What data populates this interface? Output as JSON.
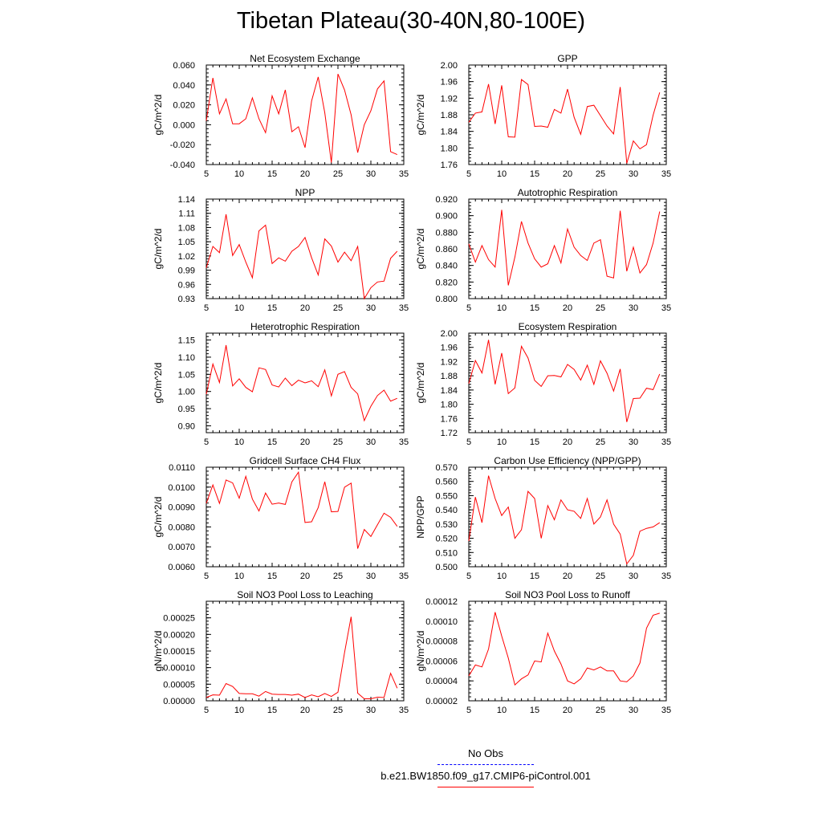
{
  "page": {
    "title": "Tibetan Plateau(30-40N,80-100E)"
  },
  "legend": [
    {
      "label": "No Obs",
      "color": "#0000ff",
      "dash": true
    },
    {
      "label": "b.e21.BW1850.f09_g17.CMIP6-piControl.001",
      "color": "#ff0000",
      "dash": false
    }
  ],
  "chart_data": [
    {
      "type": "line",
      "title": "Net Ecosystem Exchange",
      "ylabel": "gC/m^2/d",
      "xlim": [
        5,
        35
      ],
      "ylim": [
        -0.04,
        0.06
      ],
      "xticks": [
        "5",
        "10",
        "15",
        "20",
        "25",
        "30",
        "35"
      ],
      "yticks": [
        "-0.040",
        "-0.020",
        "0.000",
        "0.020",
        "0.040",
        "0.060"
      ],
      "series": [
        {
          "color": "#ff0000",
          "x": [
            5,
            6,
            7,
            8,
            9,
            10,
            11,
            12,
            13,
            14,
            15,
            16,
            17,
            18,
            19,
            20,
            21,
            22,
            23,
            24,
            25,
            26,
            27,
            28,
            29,
            30,
            31,
            32,
            33,
            34
          ],
          "y": [
            0.004,
            0.047,
            0.011,
            0.026,
            0.001,
            0.001,
            0.006,
            0.027,
            0.006,
            -0.008,
            0.029,
            0.011,
            0.035,
            -0.007,
            -0.002,
            -0.023,
            0.024,
            0.048,
            0.012,
            -0.038,
            0.051,
            0.035,
            0.01,
            -0.028,
            0.0,
            0.014,
            0.036,
            0.044,
            -0.027,
            -0.03
          ]
        }
      ]
    },
    {
      "type": "line",
      "title": "GPP",
      "ylabel": "gC/m^2/d",
      "xlim": [
        5,
        35
      ],
      "ylim": [
        1.76,
        2.0
      ],
      "xticks": [
        "5",
        "10",
        "15",
        "20",
        "25",
        "30",
        "35"
      ],
      "yticks": [
        "1.76",
        "1.80",
        "1.84",
        "1.88",
        "1.92",
        "1.96",
        "2.00"
      ],
      "series": [
        {
          "color": "#ff0000",
          "x": [
            5,
            6,
            7,
            8,
            9,
            10,
            11,
            12,
            13,
            14,
            15,
            16,
            17,
            18,
            19,
            20,
            21,
            22,
            23,
            24,
            25,
            26,
            27,
            28,
            29,
            30,
            31,
            32,
            33,
            34
          ],
          "y": [
            1.862,
            1.884,
            1.887,
            1.954,
            1.858,
            1.951,
            1.827,
            1.826,
            1.965,
            1.953,
            1.852,
            1.853,
            1.85,
            1.893,
            1.884,
            1.942,
            1.874,
            1.833,
            1.9,
            1.903,
            1.878,
            1.853,
            1.834,
            1.947,
            1.763,
            1.817,
            1.798,
            1.808,
            1.879,
            1.934
          ]
        }
      ]
    },
    {
      "type": "line",
      "title": "NPP",
      "ylabel": "gC/m^2/d",
      "xlim": [
        5,
        35
      ],
      "ylim": [
        0.93,
        1.14
      ],
      "xticks": [
        "5",
        "10",
        "15",
        "20",
        "25",
        "30",
        "35"
      ],
      "yticks": [
        "0.93",
        "0.96",
        "0.99",
        "1.02",
        "1.05",
        "1.08",
        "1.11",
        "1.14"
      ],
      "series": [
        {
          "color": "#ff0000",
          "x": [
            5,
            6,
            7,
            8,
            9,
            10,
            11,
            12,
            13,
            14,
            15,
            16,
            17,
            18,
            19,
            20,
            21,
            22,
            23,
            24,
            25,
            26,
            27,
            28,
            29,
            30,
            31,
            32,
            33,
            34
          ],
          "y": [
            0.995,
            1.04,
            1.027,
            1.108,
            1.021,
            1.044,
            1.007,
            0.974,
            1.073,
            1.085,
            1.004,
            1.016,
            1.009,
            1.03,
            1.04,
            1.059,
            1.016,
            0.98,
            1.056,
            1.041,
            1.007,
            1.028,
            1.01,
            1.04,
            0.93,
            0.953,
            0.965,
            0.967,
            1.015,
            1.03
          ]
        }
      ]
    },
    {
      "type": "line",
      "title": "Autotrophic Respiration",
      "ylabel": "gC/m^2/d",
      "xlim": [
        5,
        35
      ],
      "ylim": [
        0.8,
        0.92
      ],
      "xticks": [
        "5",
        "10",
        "15",
        "20",
        "25",
        "30",
        "35"
      ],
      "yticks": [
        "0.800",
        "0.820",
        "0.840",
        "0.860",
        "0.880",
        "0.900",
        "0.920"
      ],
      "series": [
        {
          "color": "#ff0000",
          "x": [
            5,
            6,
            7,
            8,
            9,
            10,
            11,
            12,
            13,
            14,
            15,
            16,
            17,
            18,
            19,
            20,
            21,
            22,
            23,
            24,
            25,
            26,
            27,
            28,
            29,
            30,
            31,
            32,
            33,
            34
          ],
          "y": [
            0.866,
            0.844,
            0.864,
            0.847,
            0.838,
            0.907,
            0.816,
            0.85,
            0.893,
            0.867,
            0.848,
            0.838,
            0.842,
            0.864,
            0.843,
            0.884,
            0.862,
            0.852,
            0.846,
            0.867,
            0.871,
            0.827,
            0.825,
            0.906,
            0.833,
            0.862,
            0.831,
            0.841,
            0.867,
            0.905
          ]
        }
      ]
    },
    {
      "type": "line",
      "title": "Heterotrophic Respiration",
      "ylabel": "gC/m^2/d",
      "xlim": [
        5,
        35
      ],
      "ylim": [
        0.88,
        1.17
      ],
      "xticks": [
        "5",
        "10",
        "15",
        "20",
        "25",
        "30",
        "35"
      ],
      "yticks": [
        "0.90",
        "0.95",
        "1.00",
        "1.05",
        "1.10",
        "1.15"
      ],
      "series": [
        {
          "color": "#ff0000",
          "x": [
            5,
            6,
            7,
            8,
            9,
            10,
            11,
            12,
            13,
            14,
            15,
            16,
            17,
            18,
            19,
            20,
            21,
            22,
            23,
            24,
            25,
            26,
            27,
            28,
            29,
            30,
            31,
            32,
            33,
            34
          ],
          "y": [
            0.992,
            1.08,
            1.026,
            1.135,
            1.016,
            1.037,
            1.012,
            0.999,
            1.069,
            1.064,
            1.019,
            1.013,
            1.039,
            1.017,
            1.033,
            1.025,
            1.031,
            1.014,
            1.063,
            0.987,
            1.05,
            1.058,
            1.012,
            0.993,
            0.915,
            0.957,
            0.988,
            1.004,
            0.972,
            0.98
          ]
        }
      ]
    },
    {
      "type": "line",
      "title": "Ecosystem Respiration",
      "ylabel": "gC/m^2/d",
      "xlim": [
        5,
        35
      ],
      "ylim": [
        1.72,
        2.0
      ],
      "xticks": [
        "5",
        "10",
        "15",
        "20",
        "25",
        "30",
        "35"
      ],
      "yticks": [
        "1.72",
        "1.76",
        "1.80",
        "1.84",
        "1.88",
        "1.92",
        "1.96",
        "2.00"
      ],
      "series": [
        {
          "color": "#ff0000",
          "x": [
            5,
            6,
            7,
            8,
            9,
            10,
            11,
            12,
            13,
            14,
            15,
            16,
            17,
            18,
            19,
            20,
            21,
            22,
            23,
            24,
            25,
            26,
            27,
            28,
            29,
            30,
            31,
            32,
            33,
            34
          ],
          "y": [
            1.858,
            1.923,
            1.888,
            1.981,
            1.856,
            1.944,
            1.83,
            1.846,
            1.963,
            1.93,
            1.867,
            1.85,
            1.88,
            1.881,
            1.877,
            1.912,
            1.898,
            1.868,
            1.91,
            1.856,
            1.922,
            1.887,
            1.837,
            1.899,
            1.75,
            1.816,
            1.817,
            1.845,
            1.841,
            1.885
          ]
        }
      ]
    },
    {
      "type": "line",
      "title": "Gridcell Surface CH4 Flux",
      "ylabel": "gC/m^2/d",
      "xlim": [
        5,
        35
      ],
      "ylim": [
        0.006,
        0.011
      ],
      "xticks": [
        "5",
        "10",
        "15",
        "20",
        "25",
        "30",
        "35"
      ],
      "yticks": [
        "0.0060",
        "0.0070",
        "0.0080",
        "0.0090",
        "0.0100",
        "0.0110"
      ],
      "series": [
        {
          "color": "#ff0000",
          "x": [
            5,
            6,
            7,
            8,
            9,
            10,
            11,
            12,
            13,
            14,
            15,
            16,
            17,
            18,
            19,
            20,
            21,
            22,
            23,
            24,
            25,
            26,
            27,
            28,
            29,
            30,
            31,
            32,
            33,
            34
          ],
          "y": [
            0.00918,
            0.01011,
            0.00918,
            0.01036,
            0.01021,
            0.00944,
            0.01054,
            0.0094,
            0.0088,
            0.0097,
            0.00914,
            0.0092,
            0.00913,
            0.01026,
            0.01075,
            0.00822,
            0.00826,
            0.00897,
            0.01027,
            0.00876,
            0.00878,
            0.00999,
            0.0102,
            0.00691,
            0.00787,
            0.00752,
            0.00811,
            0.00869,
            0.00848,
            0.00803
          ]
        }
      ]
    },
    {
      "type": "line",
      "title": "Carbon Use Efficiency (NPP/GPP)",
      "ylabel": "NPP/GPP",
      "xlim": [
        5,
        35
      ],
      "ylim": [
        0.5,
        0.57
      ],
      "xticks": [
        "5",
        "10",
        "15",
        "20",
        "25",
        "30",
        "35"
      ],
      "yticks": [
        "0.500",
        "0.510",
        "0.520",
        "0.530",
        "0.540",
        "0.550",
        "0.560",
        "0.570"
      ],
      "series": [
        {
          "color": "#ff0000",
          "x": [
            5,
            6,
            7,
            8,
            9,
            10,
            11,
            12,
            13,
            14,
            15,
            16,
            17,
            18,
            19,
            20,
            21,
            22,
            23,
            24,
            25,
            26,
            27,
            28,
            29,
            30,
            31,
            32,
            33,
            34
          ],
          "y": [
            0.518,
            0.549,
            0.531,
            0.564,
            0.548,
            0.536,
            0.542,
            0.52,
            0.526,
            0.553,
            0.548,
            0.52,
            0.543,
            0.533,
            0.547,
            0.54,
            0.539,
            0.534,
            0.548,
            0.53,
            0.535,
            0.547,
            0.53,
            0.523,
            0.502,
            0.508,
            0.525,
            0.527,
            0.528,
            0.531
          ]
        }
      ]
    },
    {
      "type": "line",
      "title": "Soil NO3 Pool Loss to Leaching",
      "ylabel": "gN/m^2/d",
      "xlim": [
        5,
        35
      ],
      "ylim": [
        0.0,
        0.0003
      ],
      "xticks": [
        "5",
        "10",
        "15",
        "20",
        "25",
        "30",
        "35"
      ],
      "yticks": [
        "0.00000",
        "0.00005",
        "0.00010",
        "0.00015",
        "0.00020",
        "0.00025"
      ],
      "series": [
        {
          "color": "#ff0000",
          "x": [
            5,
            6,
            7,
            8,
            9,
            10,
            11,
            12,
            13,
            14,
            15,
            16,
            17,
            18,
            19,
            20,
            21,
            22,
            23,
            24,
            25,
            26,
            27,
            28,
            29,
            30,
            31,
            32,
            33,
            34
          ],
          "y": [
            1e-05,
            1.8e-05,
            1.7e-05,
            5.2e-05,
            4.3e-05,
            2.2e-05,
            2.1e-05,
            2.1e-05,
            1.4e-05,
            2.8e-05,
            2e-05,
            1.9e-05,
            1.9e-05,
            1.7e-05,
            2e-05,
            1e-05,
            1.8e-05,
            1.2e-05,
            2.2e-05,
            1.3e-05,
            2.6e-05,
            0.000145,
            0.000253,
            2.3e-05,
            6e-06,
            6e-06,
            1.1e-05,
            1e-05,
            8.3e-05,
            3.8e-05
          ]
        }
      ]
    },
    {
      "type": "line",
      "title": "Soil NO3 Pool Loss to Runoff",
      "ylabel": "gN/m^2/d",
      "xlim": [
        5,
        35
      ],
      "ylim": [
        2e-05,
        0.00012
      ],
      "xticks": [
        "5",
        "10",
        "15",
        "20",
        "25",
        "30",
        "35"
      ],
      "yticks": [
        "0.00002",
        "0.00004",
        "0.00006",
        "0.00008",
        "0.00010",
        "0.00012"
      ],
      "series": [
        {
          "color": "#ff0000",
          "x": [
            5,
            6,
            7,
            8,
            9,
            10,
            11,
            12,
            13,
            14,
            15,
            16,
            17,
            18,
            19,
            20,
            21,
            22,
            23,
            24,
            25,
            26,
            27,
            28,
            29,
            30,
            31,
            32,
            33,
            34
          ],
          "y": [
            4.5e-05,
            5.6e-05,
            5.4e-05,
            7.2e-05,
            0.000109,
            8.5e-05,
            6.3e-05,
            3.6e-05,
            4.2e-05,
            4.6e-05,
            6e-05,
            5.9e-05,
            8.8e-05,
            7e-05,
            5.7e-05,
            4e-05,
            3.7e-05,
            4.2e-05,
            5.3e-05,
            5.1e-05,
            5.4e-05,
            5e-05,
            5e-05,
            4e-05,
            3.9e-05,
            4.5e-05,
            5.8e-05,
            9.3e-05,
            0.000106,
            0.000108
          ]
        }
      ]
    }
  ]
}
